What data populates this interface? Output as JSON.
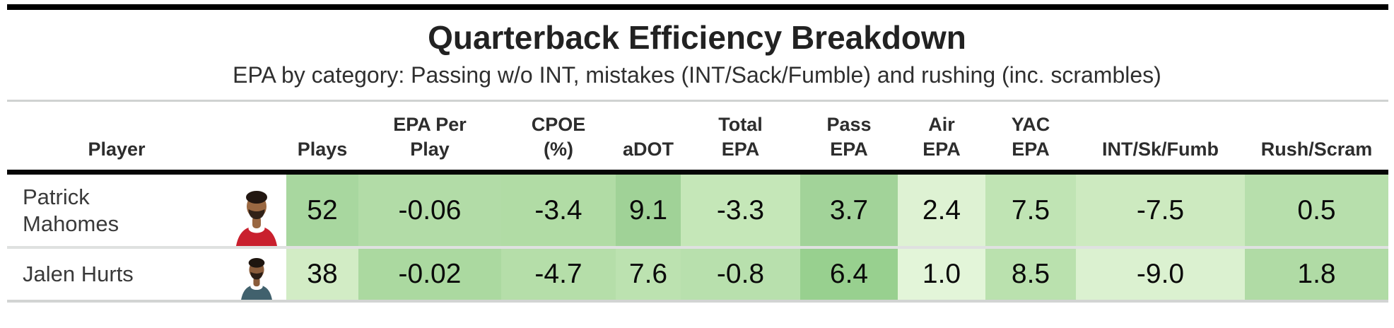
{
  "chart_data": {
    "type": "table",
    "title": "Quarterback Efficiency Breakdown",
    "subtitle": "EPA by category: Passing w/o INT, mistakes (INT/Sack/Fumble) and rushing (inc. scrambles)",
    "columns": [
      "Player",
      "Plays",
      "EPA Per Play",
      "CPOE (%)",
      "aDOT",
      "Total EPA",
      "Pass EPA",
      "Air EPA",
      "YAC EPA",
      "INT/Sk/Fumb",
      "Rush/Scram"
    ],
    "rows": [
      {
        "player": "Patrick Mahomes",
        "plays": 52,
        "epa_per_play": -0.06,
        "cpoe_pct": -3.4,
        "adot": 9.1,
        "total_epa": -3.3,
        "pass_epa": 3.7,
        "air_epa": 2.4,
        "yac_epa": 7.5,
        "int_sk_fumb": -7.5,
        "rush_scram": 0.5
      },
      {
        "player": "Jalen Hurts",
        "plays": 38,
        "epa_per_play": -0.02,
        "cpoe_pct": -4.7,
        "adot": 7.6,
        "total_epa": -0.8,
        "pass_epa": 6.4,
        "air_epa": 1.0,
        "yac_epa": 8.5,
        "int_sk_fumb": -9.0,
        "rush_scram": 1.8
      }
    ]
  },
  "table": {
    "title": "Quarterback Efficiency Breakdown",
    "subtitle": "EPA by category: Passing w/o INT, mistakes (INT/Sack/Fumble) and rushing (inc. scrambles)",
    "header_labels": [
      "Player",
      "",
      "Plays",
      "EPA Per\nPlay",
      "CPOE\n(%)",
      "aDOT",
      "Total\nEPA",
      "Pass\nEPA",
      "Air\nEPA",
      "YAC\nEPA",
      "INT/Sk/Fumb",
      "Rush/Scram"
    ],
    "rows": [
      {
        "name": "Patrick Mahomes",
        "avatar": {
          "jersey": "#c9202e",
          "collar": "#ffffff",
          "skin": "#9a6842",
          "hair": "#221711"
        },
        "cells": [
          {
            "text": "52",
            "bg": "#a8d79f"
          },
          {
            "text": "-0.06",
            "bg": "#b2dca7"
          },
          {
            "text": "-3.4",
            "bg": "#b1dca5"
          },
          {
            "text": "9.1",
            "bg": "#a0d297"
          },
          {
            "text": "-3.3",
            "bg": "#c5e7b8"
          },
          {
            "text": "3.7",
            "bg": "#a2d399"
          },
          {
            "text": "2.4",
            "bg": "#def2d3"
          },
          {
            "text": "7.5",
            "bg": "#c0e4b4"
          },
          {
            "text": "-7.5",
            "bg": "#cdeac0"
          },
          {
            "text": "0.5",
            "bg": "#b7dfac"
          }
        ]
      },
      {
        "name": "Jalen Hurts",
        "avatar": {
          "jersey": "#41616d",
          "collar": "#ffffff",
          "skin": "#8a5c3b",
          "hair": "#1e150f"
        },
        "cells": [
          {
            "text": "38",
            "bg": "#d2ecc5"
          },
          {
            "text": "-0.02",
            "bg": "#abd9a0"
          },
          {
            "text": "-4.7",
            "bg": "#b5dea9"
          },
          {
            "text": "7.6",
            "bg": "#bce2b0"
          },
          {
            "text": "-0.8",
            "bg": "#b8e0ad"
          },
          {
            "text": "6.4",
            "bg": "#98d08f"
          },
          {
            "text": "1.0",
            "bg": "#e3f5d9"
          },
          {
            "text": "8.5",
            "bg": "#bae1ae"
          },
          {
            "text": "-9.0",
            "bg": "#dbf1d0"
          },
          {
            "text": "1.8",
            "bg": "#b0dba5"
          }
        ]
      }
    ]
  }
}
